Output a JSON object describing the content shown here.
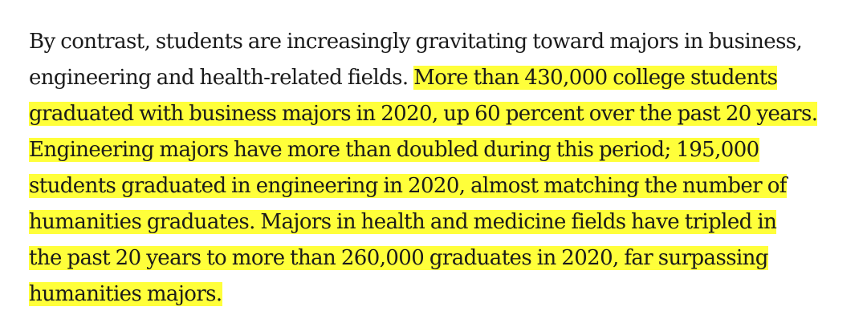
{
  "article": {
    "lines": [
      {
        "plain": "By contrast, students are increasingly gravitating toward majors in business,",
        "highlight": ""
      },
      {
        "plain": "engineering and health-related fields. ",
        "highlight": "More than 430,000 college students"
      },
      {
        "plain": "",
        "highlight": "graduated with business majors in 2020, up 60 percent over the past 20 years."
      },
      {
        "plain": "",
        "highlight": "Engineering majors have more than doubled during this period; 195,000"
      },
      {
        "plain": "",
        "highlight": "students graduated in engineering in 2020, almost matching the number of"
      },
      {
        "plain": "",
        "highlight": "humanities graduates. Majors in health and medicine fields have tripled in"
      },
      {
        "plain": "",
        "highlight": "the past 20 years to more than 260,000 graduates in 2020, far surpassing"
      },
      {
        "plain": "",
        "highlight": "humanities majors."
      }
    ],
    "highlight_color": "#ffff3a",
    "text_color": "#1a1a1a"
  }
}
